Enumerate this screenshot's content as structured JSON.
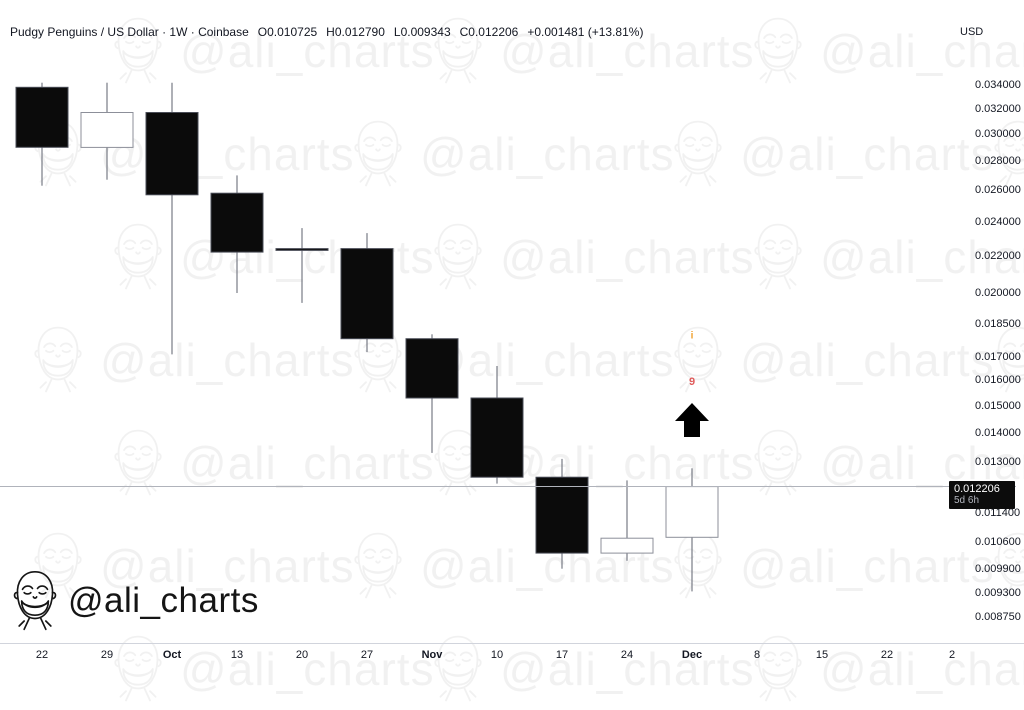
{
  "header": {
    "symbol_line": "Pudgy Penguins / US Dollar · 1W · Coinbase",
    "open_label": "O0.010725",
    "high_label": "H0.012790",
    "low_label": "L0.009343",
    "close_label": "C0.012206",
    "change_label": "+0.001481 (+13.81%)",
    "currency": "USD"
  },
  "watermark": {
    "text": "@ali_charts"
  },
  "signature": {
    "text": "@ali_charts"
  },
  "annotations": {
    "count_top": "i",
    "count_bottom": "9",
    "arrow": "up"
  },
  "price_label": {
    "price": "0.012206",
    "countdown": "5d 6h"
  },
  "colors": {
    "text": "#131722",
    "candle_down_fill": "#0b0b0b",
    "candle_down_border": "#4a4d57",
    "candle_up_fill": "#ffffff",
    "candle_up_border": "#8c8f99",
    "wick": "#787b86",
    "price_line": "#b0b3bb",
    "price_label_bg": "#0c0c0c",
    "price_label_text": "#ffffff",
    "count_top_color": "#f0a030",
    "count_bottom_color": "#e05c5c",
    "arrow_color": "#000000"
  },
  "chart_data": {
    "type": "candlestick",
    "title": "Pudgy Penguins / US Dollar",
    "interval": "1W",
    "exchange": "Coinbase",
    "y_scale": "log",
    "grid": false,
    "current_price": 0.012206,
    "y_ticks": [
      "0.034000",
      "0.032000",
      "0.030000",
      "0.028000",
      "0.026000",
      "0.024000",
      "0.022000",
      "0.020000",
      "0.018500",
      "0.017000",
      "0.016000",
      "0.015000",
      "0.014000",
      "0.013000",
      "0.011400",
      "0.010600",
      "0.009900",
      "0.009300",
      "0.008750"
    ],
    "x_ticks": [
      {
        "label": "22",
        "bold": false
      },
      {
        "label": "29",
        "bold": false
      },
      {
        "label": "Oct",
        "bold": true
      },
      {
        "label": "13",
        "bold": false
      },
      {
        "label": "20",
        "bold": false
      },
      {
        "label": "27",
        "bold": false
      },
      {
        "label": "Nov",
        "bold": true
      },
      {
        "label": "10",
        "bold": false
      },
      {
        "label": "17",
        "bold": false
      },
      {
        "label": "24",
        "bold": false
      },
      {
        "label": "Dec",
        "bold": true
      },
      {
        "label": "8",
        "bold": false
      },
      {
        "label": "15",
        "bold": false
      },
      {
        "label": "22",
        "bold": false
      },
      {
        "label": "2",
        "bold": false
      }
    ],
    "candles": [
      {
        "date": "Sep 22",
        "o": 0.0338,
        "h": 0.0342,
        "l": 0.0263,
        "c": 0.029
      },
      {
        "date": "Sep 29",
        "o": 0.029,
        "h": 0.0342,
        "l": 0.0267,
        "c": 0.0317
      },
      {
        "date": "Oct 6",
        "o": 0.0317,
        "h": 0.0342,
        "l": 0.0171,
        "c": 0.0257
      },
      {
        "date": "Oct 13",
        "o": 0.0258,
        "h": 0.027,
        "l": 0.02,
        "c": 0.0222
      },
      {
        "date": "Oct 20",
        "o": 0.0224,
        "h": 0.0236,
        "l": 0.0195,
        "c": 0.0223
      },
      {
        "date": "Oct 27",
        "o": 0.0224,
        "h": 0.0233,
        "l": 0.0172,
        "c": 0.0178
      },
      {
        "date": "Nov 3",
        "o": 0.0178,
        "h": 0.018,
        "l": 0.0133,
        "c": 0.0153
      },
      {
        "date": "Nov 10",
        "o": 0.0153,
        "h": 0.0166,
        "l": 0.0123,
        "c": 0.0125
      },
      {
        "date": "Nov 17",
        "o": 0.0125,
        "h": 0.0131,
        "l": 0.0099,
        "c": 0.0103
      },
      {
        "date": "Nov 24",
        "o": 0.0103,
        "h": 0.0124,
        "l": 0.0101,
        "c": 0.0107
      },
      {
        "date": "Dec 1",
        "o": 0.010725,
        "h": 0.01279,
        "l": 0.009343,
        "c": 0.012206
      }
    ]
  }
}
